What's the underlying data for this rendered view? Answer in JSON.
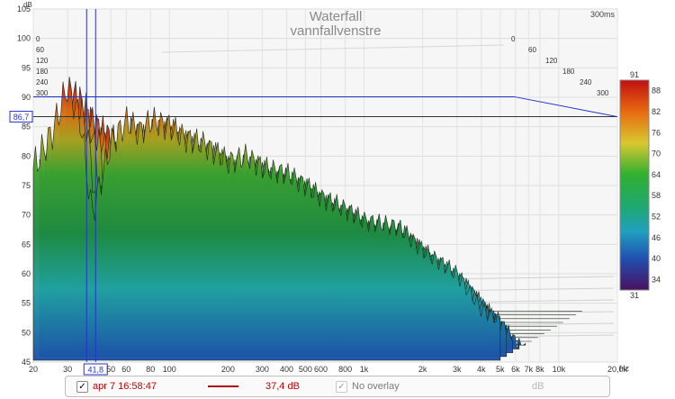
{
  "title": "Waterfall",
  "subtitle": "vannfallvenstre",
  "time_badge": "300ms",
  "y_axis": {
    "unit": "dB",
    "ticks": [
      "105",
      "100",
      "95",
      "90",
      "85",
      "80",
      "75",
      "70",
      "65",
      "60",
      "55",
      "50",
      "45"
    ]
  },
  "x_axis": {
    "unit": "Hz",
    "ticks": [
      "20",
      "30",
      "50",
      "60",
      "80",
      "100",
      "200",
      "300",
      "400",
      "500",
      "600",
      "800",
      "1k",
      "2k",
      "3k",
      "4k",
      "5k",
      "6k",
      "7k",
      "8k",
      "10k",
      "20,0k"
    ]
  },
  "time_axis_left": [
    "0",
    "60",
    "120",
    "180",
    "240",
    "300"
  ],
  "time_axis_right": [
    "0",
    "60",
    "120",
    "180",
    "240",
    "300"
  ],
  "cursor": {
    "db_readout": "86,7",
    "hz_readout": "41,8"
  },
  "colorbar": {
    "top_label": "91",
    "bottom_label": "31",
    "ticks": [
      "88",
      "82",
      "76",
      "70",
      "64",
      "58",
      "52",
      "46",
      "40",
      "34"
    ]
  },
  "bottom_bar": {
    "checkbox_mark": "✓",
    "measurement_name": "apr 7 16:58:47",
    "measurement_level": "37,4 dB",
    "overlay_mark": "✓",
    "overlay_label": "No overlay",
    "overlay_unit": "dB"
  },
  "chart_data": {
    "type": "area",
    "title": "Waterfall",
    "subtitle": "vannfallvenstre",
    "xlabel": "Hz",
    "ylabel": "dB",
    "x_scale": "log",
    "xlim": [
      20,
      20000
    ],
    "ylim": [
      45,
      105
    ],
    "zlim_ms": [
      0,
      300
    ],
    "grid": true,
    "legend": "none",
    "series": [
      {
        "x": [
          20,
          25,
          30,
          35,
          40,
          50,
          60,
          70,
          80,
          100,
          120,
          150,
          200,
          250,
          300,
          400,
          500,
          600,
          800,
          1000,
          1500,
          2000,
          3000,
          4000,
          5000
        ],
        "y": [
          78,
          84,
          92,
          86,
          70,
          82,
          86,
          84,
          86,
          85,
          83,
          82,
          79,
          80,
          78,
          77,
          75,
          73,
          71,
          69,
          68,
          64,
          60,
          54,
          52
        ]
      }
    ],
    "colors": {
      "hot": "#d01010",
      "mid": "#2aa030",
      "cool": "#1a5aa8",
      "cursor": "#2233cc"
    }
  }
}
